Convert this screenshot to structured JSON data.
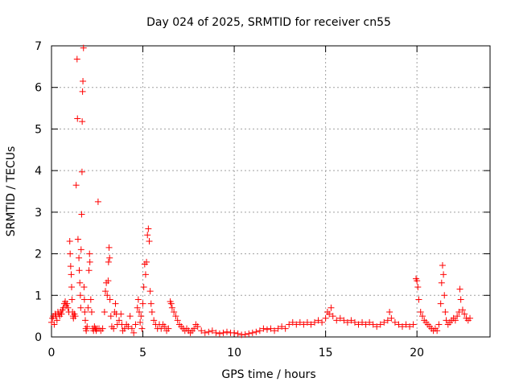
{
  "chart_data": {
    "type": "scatter",
    "title": "Day 024 of 2025, SRMTID for receiver cn55",
    "xlabel": "GPS time / hours",
    "ylabel": "SRMTID / TECUs",
    "xlim": [
      0,
      24
    ],
    "ylim": [
      0,
      7
    ],
    "xticks": [
      0,
      5,
      10,
      15,
      20
    ],
    "xtick_labels": [
      "0",
      "5",
      "10",
      "15",
      "20"
    ],
    "yticks": [
      0,
      1,
      2,
      3,
      4,
      5,
      6,
      7
    ],
    "ytick_labels": [
      "0",
      "1",
      "2",
      "3",
      "4",
      "5",
      "6",
      "7"
    ],
    "grid": true,
    "marker": "+",
    "series": [
      {
        "name": "SRMTID",
        "color": "#ff0000",
        "points": [
          [
            0.0,
            0.35
          ],
          [
            0.05,
            0.45
          ],
          [
            0.1,
            0.5
          ],
          [
            0.15,
            0.3
          ],
          [
            0.2,
            0.55
          ],
          [
            0.25,
            0.5
          ],
          [
            0.3,
            0.4
          ],
          [
            0.35,
            0.6
          ],
          [
            0.4,
            0.55
          ],
          [
            0.45,
            0.5
          ],
          [
            0.5,
            0.6
          ],
          [
            0.55,
            0.55
          ],
          [
            0.6,
            0.65
          ],
          [
            0.65,
            0.7
          ],
          [
            0.7,
            0.8
          ],
          [
            0.75,
            0.85
          ],
          [
            0.8,
            0.75
          ],
          [
            0.85,
            0.8
          ],
          [
            0.9,
            0.7
          ],
          [
            0.95,
            0.6
          ],
          [
            1.0,
            2.3
          ],
          [
            1.02,
            2.0
          ],
          [
            1.05,
            1.7
          ],
          [
            1.08,
            1.5
          ],
          [
            1.1,
            1.2
          ],
          [
            1.12,
            0.9
          ],
          [
            1.15,
            0.6
          ],
          [
            1.18,
            0.5
          ],
          [
            1.2,
            0.45
          ],
          [
            1.25,
            0.55
          ],
          [
            1.3,
            0.5
          ],
          [
            1.35,
            3.65
          ],
          [
            1.4,
            6.68
          ],
          [
            1.42,
            5.25
          ],
          [
            1.45,
            2.35
          ],
          [
            1.5,
            1.9
          ],
          [
            1.52,
            1.6
          ],
          [
            1.55,
            1.3
          ],
          [
            1.58,
            1.0
          ],
          [
            1.6,
            0.7
          ],
          [
            1.62,
            2.1
          ],
          [
            1.65,
            2.95
          ],
          [
            1.67,
            3.97
          ],
          [
            1.68,
            5.18
          ],
          [
            1.7,
            5.9
          ],
          [
            1.72,
            6.15
          ],
          [
            1.75,
            6.95
          ],
          [
            1.78,
            1.2
          ],
          [
            1.8,
            0.9
          ],
          [
            1.82,
            0.6
          ],
          [
            1.85,
            0.4
          ],
          [
            1.88,
            0.2
          ],
          [
            1.9,
            0.15
          ],
          [
            1.95,
            0.25
          ],
          [
            2.0,
            0.7
          ],
          [
            2.05,
            1.6
          ],
          [
            2.08,
            2.0
          ],
          [
            2.1,
            1.8
          ],
          [
            2.15,
            0.9
          ],
          [
            2.2,
            0.6
          ],
          [
            2.25,
            0.2
          ],
          [
            2.3,
            0.15
          ],
          [
            2.35,
            0.25
          ],
          [
            2.4,
            0.2
          ],
          [
            2.45,
            0.15
          ],
          [
            2.5,
            0.2
          ],
          [
            2.55,
            3.25
          ],
          [
            2.6,
            0.2
          ],
          [
            2.7,
            0.15
          ],
          [
            2.8,
            0.2
          ],
          [
            2.9,
            0.6
          ],
          [
            2.95,
            1.1
          ],
          [
            3.0,
            1.3
          ],
          [
            3.05,
            1.0
          ],
          [
            3.1,
            1.35
          ],
          [
            3.12,
            1.8
          ],
          [
            3.15,
            2.15
          ],
          [
            3.18,
            1.9
          ],
          [
            3.2,
            0.9
          ],
          [
            3.25,
            0.5
          ],
          [
            3.3,
            0.25
          ],
          [
            3.4,
            0.2
          ],
          [
            3.45,
            0.6
          ],
          [
            3.5,
            0.8
          ],
          [
            3.55,
            0.55
          ],
          [
            3.6,
            0.3
          ],
          [
            3.7,
            0.4
          ],
          [
            3.8,
            0.55
          ],
          [
            3.85,
            0.3
          ],
          [
            3.9,
            0.15
          ],
          [
            4.0,
            0.2
          ],
          [
            4.1,
            0.3
          ],
          [
            4.2,
            0.25
          ],
          [
            4.3,
            0.5
          ],
          [
            4.4,
            0.2
          ],
          [
            4.5,
            0.1
          ],
          [
            4.6,
            0.3
          ],
          [
            4.7,
            0.7
          ],
          [
            4.75,
            0.9
          ],
          [
            4.8,
            0.6
          ],
          [
            4.85,
            0.35
          ],
          [
            4.9,
            0.5
          ],
          [
            4.95,
            0.2
          ],
          [
            5.0,
            0.8
          ],
          [
            5.05,
            1.2
          ],
          [
            5.1,
            1.75
          ],
          [
            5.15,
            1.5
          ],
          [
            5.2,
            1.8
          ],
          [
            5.25,
            2.45
          ],
          [
            5.3,
            2.6
          ],
          [
            5.35,
            2.3
          ],
          [
            5.4,
            1.1
          ],
          [
            5.45,
            0.8
          ],
          [
            5.5,
            0.6
          ],
          [
            5.6,
            0.4
          ],
          [
            5.7,
            0.3
          ],
          [
            5.8,
            0.2
          ],
          [
            5.9,
            0.3
          ],
          [
            6.0,
            0.2
          ],
          [
            6.1,
            0.3
          ],
          [
            6.2,
            0.25
          ],
          [
            6.3,
            0.15
          ],
          [
            6.4,
            0.2
          ],
          [
            6.5,
            0.85
          ],
          [
            6.55,
            0.8
          ],
          [
            6.6,
            0.7
          ],
          [
            6.7,
            0.6
          ],
          [
            6.8,
            0.5
          ],
          [
            6.9,
            0.4
          ],
          [
            7.0,
            0.3
          ],
          [
            7.1,
            0.25
          ],
          [
            7.2,
            0.2
          ],
          [
            7.3,
            0.15
          ],
          [
            7.4,
            0.2
          ],
          [
            7.5,
            0.15
          ],
          [
            7.6,
            0.1
          ],
          [
            7.7,
            0.15
          ],
          [
            7.8,
            0.2
          ],
          [
            7.9,
            0.3
          ],
          [
            8.0,
            0.25
          ],
          [
            8.2,
            0.15
          ],
          [
            8.4,
            0.1
          ],
          [
            8.6,
            0.12
          ],
          [
            8.8,
            0.15
          ],
          [
            9.0,
            0.1
          ],
          [
            9.2,
            0.08
          ],
          [
            9.4,
            0.1
          ],
          [
            9.6,
            0.12
          ],
          [
            9.8,
            0.1
          ],
          [
            10.0,
            0.1
          ],
          [
            10.2,
            0.08
          ],
          [
            10.4,
            0.05
          ],
          [
            10.6,
            0.06
          ],
          [
            10.8,
            0.08
          ],
          [
            11.0,
            0.1
          ],
          [
            11.2,
            0.12
          ],
          [
            11.4,
            0.15
          ],
          [
            11.6,
            0.2
          ],
          [
            11.8,
            0.18
          ],
          [
            12.0,
            0.2
          ],
          [
            12.2,
            0.15
          ],
          [
            12.4,
            0.2
          ],
          [
            12.6,
            0.25
          ],
          [
            12.8,
            0.2
          ],
          [
            13.0,
            0.3
          ],
          [
            13.2,
            0.35
          ],
          [
            13.4,
            0.3
          ],
          [
            13.6,
            0.35
          ],
          [
            13.8,
            0.3
          ],
          [
            14.0,
            0.35
          ],
          [
            14.2,
            0.3
          ],
          [
            14.4,
            0.35
          ],
          [
            14.6,
            0.4
          ],
          [
            14.8,
            0.35
          ],
          [
            15.0,
            0.45
          ],
          [
            15.1,
            0.6
          ],
          [
            15.2,
            0.55
          ],
          [
            15.3,
            0.7
          ],
          [
            15.4,
            0.5
          ],
          [
            15.6,
            0.4
          ],
          [
            15.8,
            0.45
          ],
          [
            16.0,
            0.4
          ],
          [
            16.2,
            0.35
          ],
          [
            16.4,
            0.4
          ],
          [
            16.6,
            0.35
          ],
          [
            16.8,
            0.3
          ],
          [
            17.0,
            0.35
          ],
          [
            17.2,
            0.3
          ],
          [
            17.4,
            0.35
          ],
          [
            17.6,
            0.3
          ],
          [
            17.8,
            0.25
          ],
          [
            18.0,
            0.3
          ],
          [
            18.2,
            0.35
          ],
          [
            18.4,
            0.4
          ],
          [
            18.5,
            0.6
          ],
          [
            18.6,
            0.45
          ],
          [
            18.8,
            0.35
          ],
          [
            19.0,
            0.3
          ],
          [
            19.2,
            0.25
          ],
          [
            19.4,
            0.3
          ],
          [
            19.6,
            0.25
          ],
          [
            19.8,
            0.3
          ],
          [
            19.95,
            1.4
          ],
          [
            20.0,
            1.35
          ],
          [
            20.05,
            1.2
          ],
          [
            20.1,
            0.9
          ],
          [
            20.2,
            0.6
          ],
          [
            20.3,
            0.5
          ],
          [
            20.4,
            0.4
          ],
          [
            20.5,
            0.35
          ],
          [
            20.6,
            0.3
          ],
          [
            20.7,
            0.25
          ],
          [
            20.8,
            0.2
          ],
          [
            20.9,
            0.15
          ],
          [
            21.0,
            0.2
          ],
          [
            21.1,
            0.15
          ],
          [
            21.2,
            0.3
          ],
          [
            21.3,
            0.8
          ],
          [
            21.35,
            1.3
          ],
          [
            21.4,
            1.72
          ],
          [
            21.45,
            1.5
          ],
          [
            21.5,
            1.0
          ],
          [
            21.55,
            0.6
          ],
          [
            21.6,
            0.4
          ],
          [
            21.7,
            0.3
          ],
          [
            21.8,
            0.35
          ],
          [
            21.9,
            0.4
          ],
          [
            22.0,
            0.45
          ],
          [
            22.1,
            0.4
          ],
          [
            22.2,
            0.5
          ],
          [
            22.3,
            0.6
          ],
          [
            22.35,
            1.15
          ],
          [
            22.4,
            0.9
          ],
          [
            22.5,
            0.65
          ],
          [
            22.6,
            0.55
          ],
          [
            22.7,
            0.45
          ],
          [
            22.8,
            0.4
          ],
          [
            22.9,
            0.45
          ]
        ]
      }
    ]
  }
}
